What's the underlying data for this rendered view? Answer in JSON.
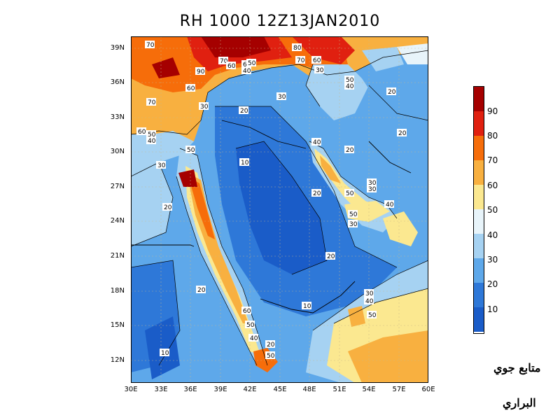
{
  "title": "RH 1000 12Z13JAN2010",
  "lat_labels": [
    "39N",
    "36N",
    "33N",
    "30N",
    "27N",
    "24N",
    "21N",
    "18N",
    "15N",
    "12N"
  ],
  "lon_labels": [
    "30E",
    "33E",
    "36E",
    "39E",
    "42E",
    "45E",
    "48E",
    "51E",
    "54E",
    "57E",
    "60E"
  ],
  "colorbar": {
    "labels": [
      "90",
      "80",
      "70",
      "60",
      "50",
      "40",
      "30",
      "20",
      "10"
    ],
    "colors": [
      "#a50000",
      "#e02010",
      "#f66d0a",
      "#f8b040",
      "#fbe890",
      "#e8f4fa",
      "#a6d2f2",
      "#5ea8ea",
      "#2e78d8",
      "#1a5cc8"
    ]
  },
  "contour_labels": [
    "70",
    "70",
    "90",
    "70",
    "60",
    "60",
    "50",
    "40",
    "60",
    "30",
    "50",
    "40",
    "30",
    "60",
    "20",
    "20",
    "20",
    "40",
    "30",
    "80",
    "70",
    "50",
    "50",
    "40",
    "60",
    "30",
    "10",
    "20",
    "30",
    "20",
    "50",
    "30",
    "40",
    "50",
    "30",
    "20",
    "20",
    "20",
    "60",
    "50",
    "40",
    "20",
    "50",
    "10",
    "30",
    "40",
    "50",
    "10"
  ],
  "signature": {
    "line1": "متابع جوي",
    "line2": "البراري"
  }
}
